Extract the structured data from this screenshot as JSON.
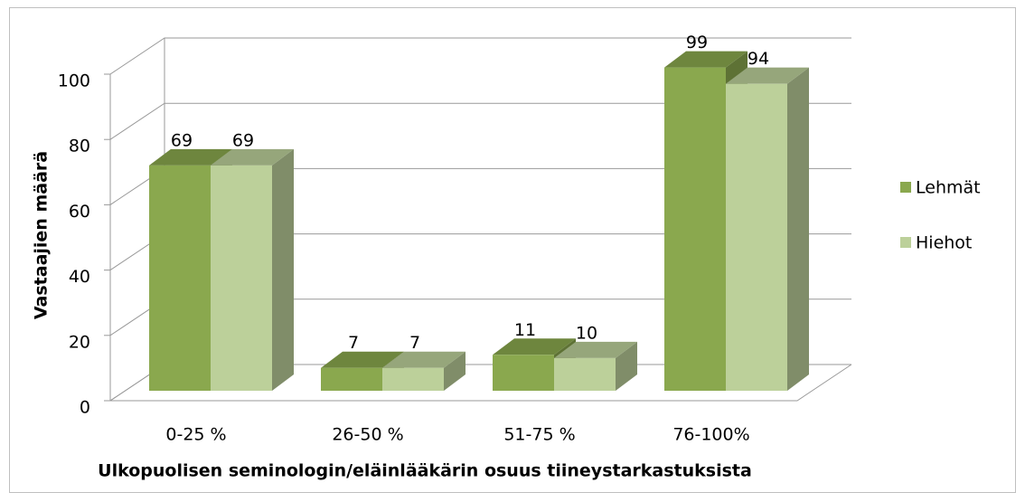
{
  "chart_data": {
    "type": "bar3d",
    "x_label": "Ulkopuolisen seminologin/eläinlääkärin osuus tiineystarkastuksista",
    "y_label": "Vastaajien määrä",
    "categories": [
      "0-25 %",
      "26-50 %",
      "51-75 %",
      "76-100%"
    ],
    "series": [
      {
        "name": "Lehmät",
        "color": "#8aa84e",
        "values": [
          69,
          7,
          11,
          99
        ]
      },
      {
        "name": "Hiehot",
        "color": "#bcd09a",
        "values": [
          69,
          7,
          10,
          94
        ]
      }
    ],
    "ylim": [
      0,
      100
    ],
    "yticks": [
      0,
      20,
      40,
      60,
      80,
      100
    ],
    "grid": true,
    "legend": "right"
  }
}
